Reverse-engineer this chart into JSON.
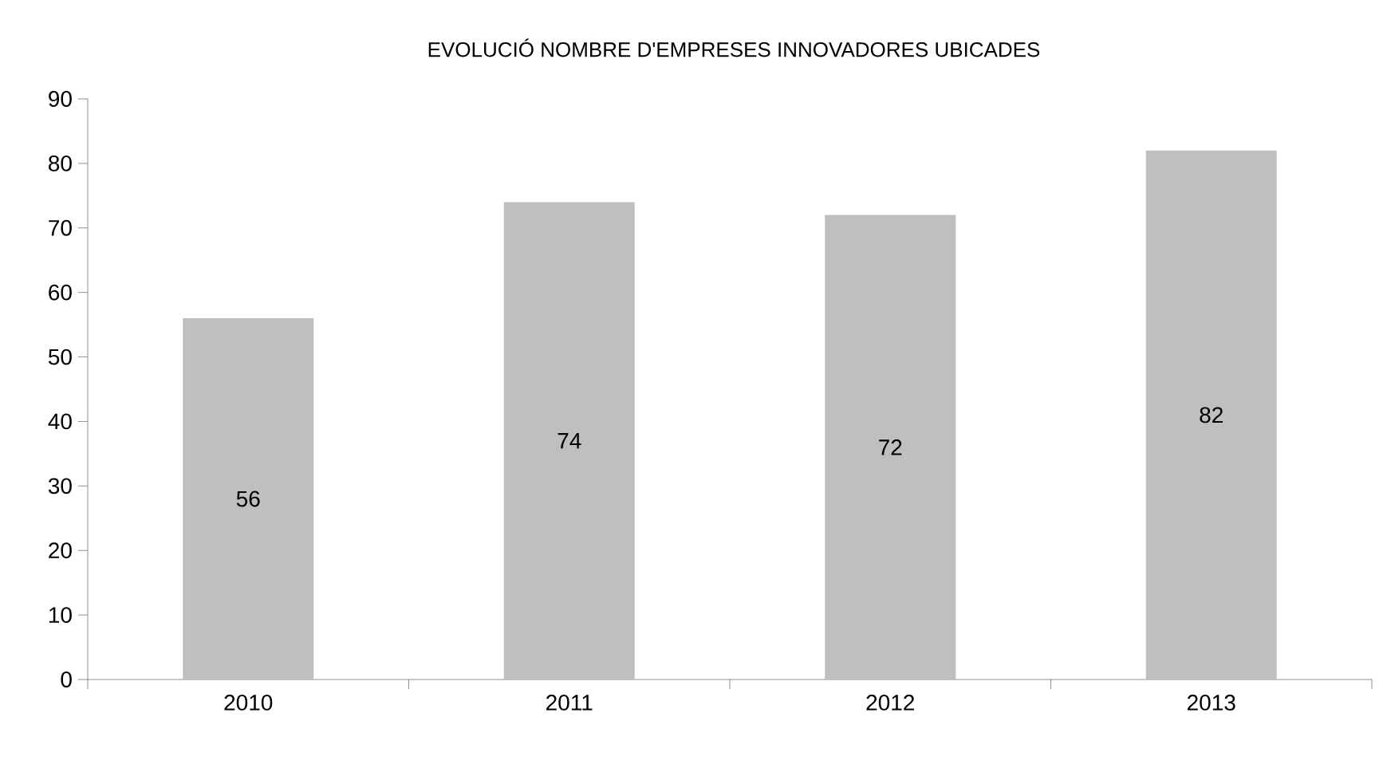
{
  "chart_data": {
    "type": "bar",
    "title": "EVOLUCIÓ NOMBRE D'EMPRESES INNOVADORES UBICADES",
    "categories": [
      "2010",
      "2011",
      "2012",
      "2013"
    ],
    "values": [
      56,
      74,
      72,
      82
    ],
    "color": "#bfbfbf",
    "ylim": [
      0,
      90
    ],
    "yticks": [
      0,
      10,
      20,
      30,
      40,
      50,
      60,
      70,
      80,
      90
    ],
    "data_labels": true
  }
}
